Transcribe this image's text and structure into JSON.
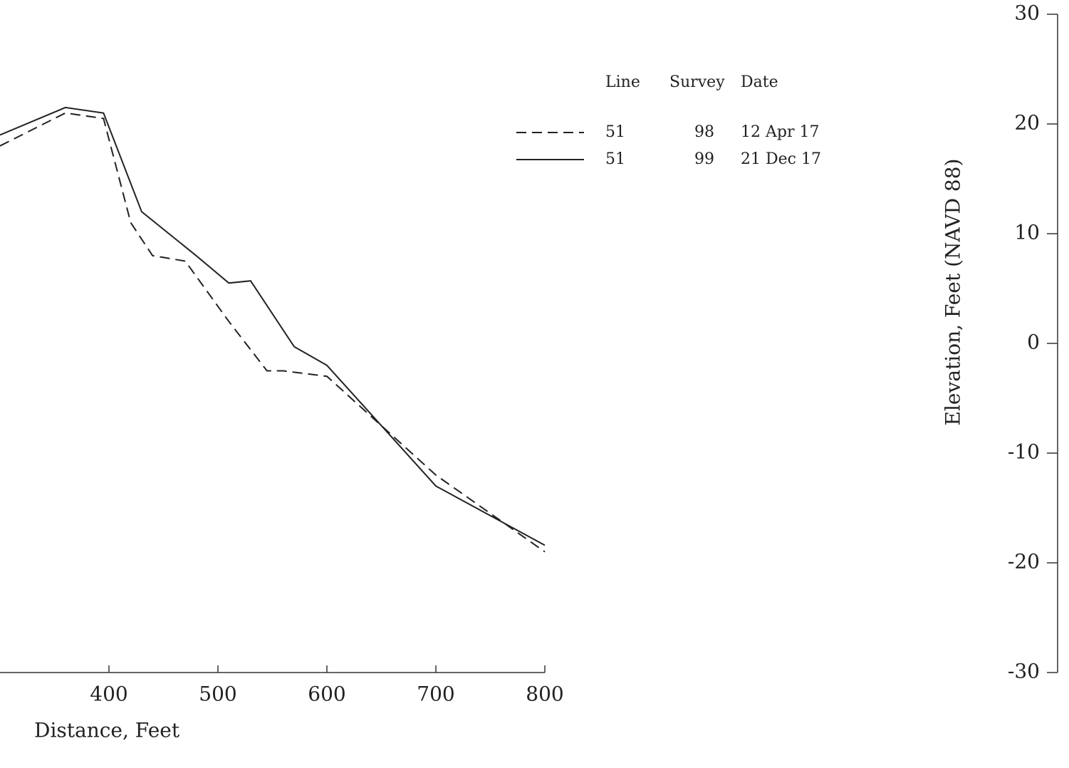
{
  "chart_data": {
    "type": "line",
    "x_label": "Distance, Feet",
    "y_label": "Elevation, Feet (NAVD 88)",
    "xlim": [
      300,
      800
    ],
    "xticks": [
      400,
      500,
      600,
      700,
      800
    ],
    "ylim": [
      -30,
      30
    ],
    "yticks": [
      -30,
      -20,
      -10,
      0,
      10,
      20,
      30
    ],
    "legend_headers": [
      "Line",
      "Survey",
      "Date"
    ],
    "series": [
      {
        "name": "12 Apr 17",
        "line": "51",
        "survey": "98",
        "dash": true,
        "color": "#222",
        "x": [
          300,
          360,
          395,
          420,
          440,
          470,
          510,
          545,
          560,
          600,
          700,
          800
        ],
        "values": [
          18,
          21,
          20.5,
          11,
          8,
          7.5,
          2,
          -2.5,
          -2.5,
          -3,
          -12,
          -19
        ]
      },
      {
        "name": "21 Dec 17",
        "line": "51",
        "survey": "99",
        "dash": false,
        "color": "#222",
        "x": [
          300,
          360,
          395,
          430,
          480,
          510,
          530,
          570,
          600,
          700,
          800
        ],
        "values": [
          19,
          21.5,
          21,
          12,
          8,
          5.5,
          5.7,
          -0.3,
          -2,
          -13,
          -18.4
        ]
      }
    ]
  }
}
